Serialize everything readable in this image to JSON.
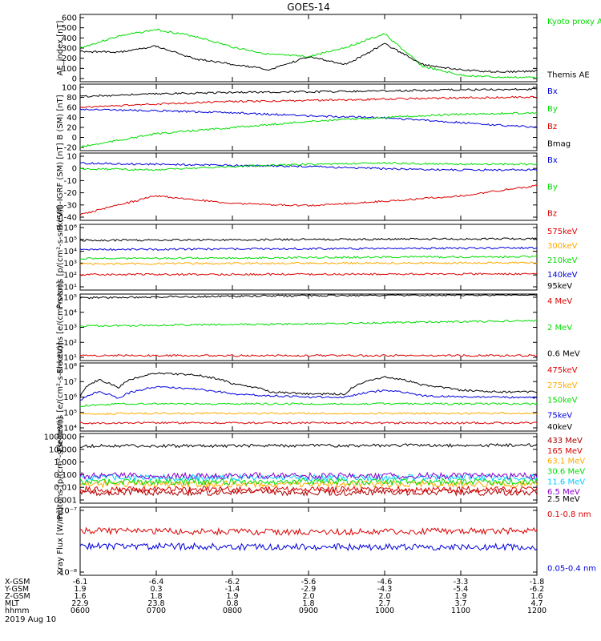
{
  "title": "GOES-14",
  "date": "2019 Aug 10",
  "colors": {
    "black": "#000000",
    "green": "#00dd00",
    "blue": "#0000dd",
    "red": "#dd0000",
    "orange": "#ffaa00",
    "darkred": "#aa0000",
    "cyan": "#00ccff",
    "purple": "#8800cc"
  },
  "x_ticks": [
    "0600",
    "0700",
    "0800",
    "0900",
    "1000",
    "1100",
    "1200"
  ],
  "orbit_table": {
    "row_labels": [
      "X-GSM",
      "Y-GSM",
      "Z-GSM",
      "MLT",
      "hhmm"
    ],
    "rows": [
      [
        "-6.1",
        "-6.4",
        "-6.2",
        "-5.6",
        "-4.6",
        "-3.3",
        "-1.8"
      ],
      [
        "1.9",
        "0.3",
        "-1.4",
        "-2.9",
        "-4.3",
        "-5.4",
        "-6.2"
      ],
      [
        "1.6",
        "1.8",
        "1.9",
        "2.0",
        "2.0",
        "1.9",
        "1.6"
      ],
      [
        "22.9",
        "23.8",
        "0.8",
        "1.8",
        "2.7",
        "3.7",
        "4.7"
      ],
      [
        "0600",
        "0700",
        "0800",
        "0900",
        "1000",
        "1100",
        "1200"
      ]
    ]
  },
  "chart_data": [
    {
      "type": "line",
      "ylabel": "AE_index [nT]",
      "yticks": [
        "600",
        "500",
        "400",
        "300",
        "200",
        "100",
        "0"
      ],
      "ylim": [
        0,
        620
      ],
      "x": [
        6.0,
        6.5,
        7.0,
        7.5,
        8.0,
        8.5,
        9.0,
        9.5,
        10.0,
        10.5,
        11.0,
        11.5,
        12.0
      ],
      "series": [
        {
          "name": "Kyoto proxy AE",
          "color": "green",
          "values": [
            310,
            420,
            480,
            420,
            320,
            250,
            230,
            320,
            440,
            140,
            60,
            40,
            40
          ]
        },
        {
          "name": "Themis AE",
          "color": "black",
          "values": [
            280,
            270,
            330,
            210,
            160,
            110,
            230,
            160,
            350,
            160,
            110,
            90,
            100
          ]
        }
      ]
    },
    {
      "type": "line",
      "ylabel": "B (SM) [nT]",
      "yticks": [
        "100",
        "80",
        "60",
        "40",
        "20",
        "0",
        "-20"
      ],
      "ylim": [
        -25,
        105
      ],
      "x": [
        6.0,
        7.0,
        8.0,
        9.0,
        10.0,
        11.0,
        12.0
      ],
      "series": [
        {
          "name": "Bx",
          "color": "blue",
          "values": [
            56,
            53,
            49,
            43,
            39,
            30,
            20
          ]
        },
        {
          "name": "By",
          "color": "green",
          "values": [
            -18,
            8,
            20,
            32,
            40,
            46,
            49
          ]
        },
        {
          "name": "Bz",
          "color": "red",
          "values": [
            60,
            66,
            71,
            73,
            76,
            78,
            80
          ]
        },
        {
          "name": "Bmag",
          "color": "black",
          "values": [
            81,
            86,
            89,
            90,
            92,
            94,
            95
          ]
        }
      ]
    },
    {
      "type": "line",
      "ylabel": "B (SM)-IGRF (SM) [nT]",
      "yticks": [
        "10",
        "0",
        "-10",
        "-20",
        "-30",
        "-40"
      ],
      "ylim": [
        -42,
        18
      ],
      "x": [
        6.0,
        7.0,
        8.0,
        9.0,
        10.0,
        11.0,
        12.0
      ],
      "series": [
        {
          "name": "Bx",
          "color": "blue",
          "values": [
            9,
            8,
            7,
            6,
            4,
            3,
            3
          ]
        },
        {
          "name": "By",
          "color": "green",
          "values": [
            4,
            3,
            6,
            8,
            9,
            8,
            8
          ]
        },
        {
          "name": "Bz",
          "color": "red",
          "values": [
            -37,
            -20,
            -27,
            -29,
            -25,
            -20,
            -11
          ]
        }
      ]
    },
    {
      "type": "line",
      "scale": "log",
      "ylabel": "Protons [p/(cm²-s-sr-keV)]",
      "yticks": [
        "10⁶",
        "10⁵",
        "10⁴",
        "10³",
        "10²",
        "10¹"
      ],
      "ylim": [
        10,
        1000000
      ],
      "x": [
        6.0,
        9.0,
        12.0
      ],
      "series": [
        {
          "name": "575keV",
          "color": "red",
          "values": [
            150,
            160,
            170
          ]
        },
        {
          "name": "300keV",
          "color": "orange",
          "values": [
            1000,
            1100,
            1200
          ]
        },
        {
          "name": "210keV",
          "color": "green",
          "values": [
            2500,
            3000,
            3500
          ]
        },
        {
          "name": "140keV",
          "color": "blue",
          "values": [
            12000,
            14000,
            16000
          ]
        },
        {
          "name": "95keV",
          "color": "black",
          "values": [
            60000,
            70000,
            80000
          ]
        }
      ]
    },
    {
      "type": "line",
      "scale": "log",
      "ylabel": "Electrons [e/(cm²-s-sr)]",
      "yticks": [
        "10⁵",
        "10⁴",
        "10³",
        "10²",
        "10¹"
      ],
      "ylim": [
        10,
        100000
      ],
      "x": [
        6.0,
        9.0,
        12.0
      ],
      "series": [
        {
          "name": "4 MeV",
          "color": "red",
          "values": [
            20,
            20,
            20
          ]
        },
        {
          "name": "2 MeV",
          "color": "green",
          "values": [
            1200,
            1600,
            2500
          ]
        },
        {
          "name": "0.6 MeV",
          "color": "black",
          "values": [
            60000,
            80000,
            90000
          ]
        }
      ]
    },
    {
      "type": "line",
      "scale": "log",
      "ylabel": "Electrons [e/(cm²-s-sr-keV)]",
      "yticks": [
        "10⁸",
        "10⁷",
        "10⁶",
        "10⁵",
        "10⁴"
      ],
      "ylim": [
        10000,
        100000000
      ],
      "x": [
        6.0,
        6.25,
        6.5,
        7.0,
        7.5,
        8.0,
        8.5,
        9.0,
        9.5,
        10.0,
        10.5,
        11.0,
        11.5,
        12.0
      ],
      "series": [
        {
          "name": "475keV",
          "color": "red",
          "values": [
            30000,
            30000,
            30000,
            30000,
            30000,
            30000,
            30000,
            30000,
            30000,
            30000,
            30000,
            30000,
            30000,
            30000
          ]
        },
        {
          "name": "275keV",
          "color": "orange",
          "values": [
            100000,
            100000,
            110000,
            110000,
            110000,
            110000,
            110000,
            110000,
            110000,
            110000,
            110000,
            110000,
            110000,
            110000
          ]
        },
        {
          "name": "150keV",
          "color": "green",
          "values": [
            300000,
            350000,
            400000,
            400000,
            400000,
            400000,
            400000,
            400000,
            400000,
            400000,
            400000,
            400000,
            400000,
            400000
          ]
        },
        {
          "name": "75keV",
          "color": "blue",
          "values": [
            600000,
            2000000,
            800000,
            4000000,
            3000000,
            1500000,
            1200000,
            1000000,
            1000000,
            2500000,
            1200000,
            1000000,
            1000000,
            900000
          ]
        },
        {
          "name": "40keV",
          "color": "black",
          "values": [
            1000000,
            10000000,
            3000000,
            25000000,
            20000000,
            6000000,
            2000000,
            1500000,
            1500000,
            15000000,
            5000000,
            2500000,
            2000000,
            2000000
          ]
        }
      ]
    },
    {
      "type": "line",
      "scale": "log",
      "ylabel": "Protons [p/(cm²-s-sr-keV)]",
      "yticks": [
        "100.000",
        "10.000",
        "1.000",
        "0.100",
        "0.010",
        "0.001"
      ],
      "ylim": [
        0.0008,
        100
      ],
      "x": [
        6.0,
        9.0,
        12.0
      ],
      "series": [
        {
          "name": "433 MeV",
          "color": "darkred",
          "values": [
            0.005,
            0.005,
            0.005
          ]
        },
        {
          "name": "165 MeV",
          "color": "red",
          "values": [
            0.008,
            0.008,
            0.008
          ]
        },
        {
          "name": "63.1 MeV",
          "color": "orange",
          "values": [
            0.02,
            0.02,
            0.02
          ]
        },
        {
          "name": "30.6 MeV",
          "color": "green",
          "values": [
            0.03,
            0.03,
            0.03
          ]
        },
        {
          "name": "11.6 MeV",
          "color": "cyan",
          "values": [
            0.06,
            0.06,
            0.06
          ]
        },
        {
          "name": "6.5 MeV",
          "color": "purple",
          "values": [
            0.08,
            0.08,
            0.08
          ]
        },
        {
          "name": "2.5 MeV",
          "color": "black",
          "values": [
            12,
            13,
            14
          ]
        }
      ]
    },
    {
      "type": "line",
      "scale": "log",
      "ylabel": "Xray Flux [W/m²]",
      "yticks": [
        "10⁻⁷",
        "10⁻⁸"
      ],
      "ylim": [
        1e-08,
        1e-07
      ],
      "x": [
        6.0,
        9.0,
        12.0
      ],
      "series": [
        {
          "name": "0.1-0.8 nm",
          "color": "red",
          "values": [
            4.5e-08,
            4.3e-08,
            4.5e-08
          ]
        },
        {
          "name": "0.05-0.4 nm",
          "color": "blue",
          "values": [
            2.7e-08,
            2.6e-08,
            2.6e-08
          ]
        }
      ]
    }
  ]
}
